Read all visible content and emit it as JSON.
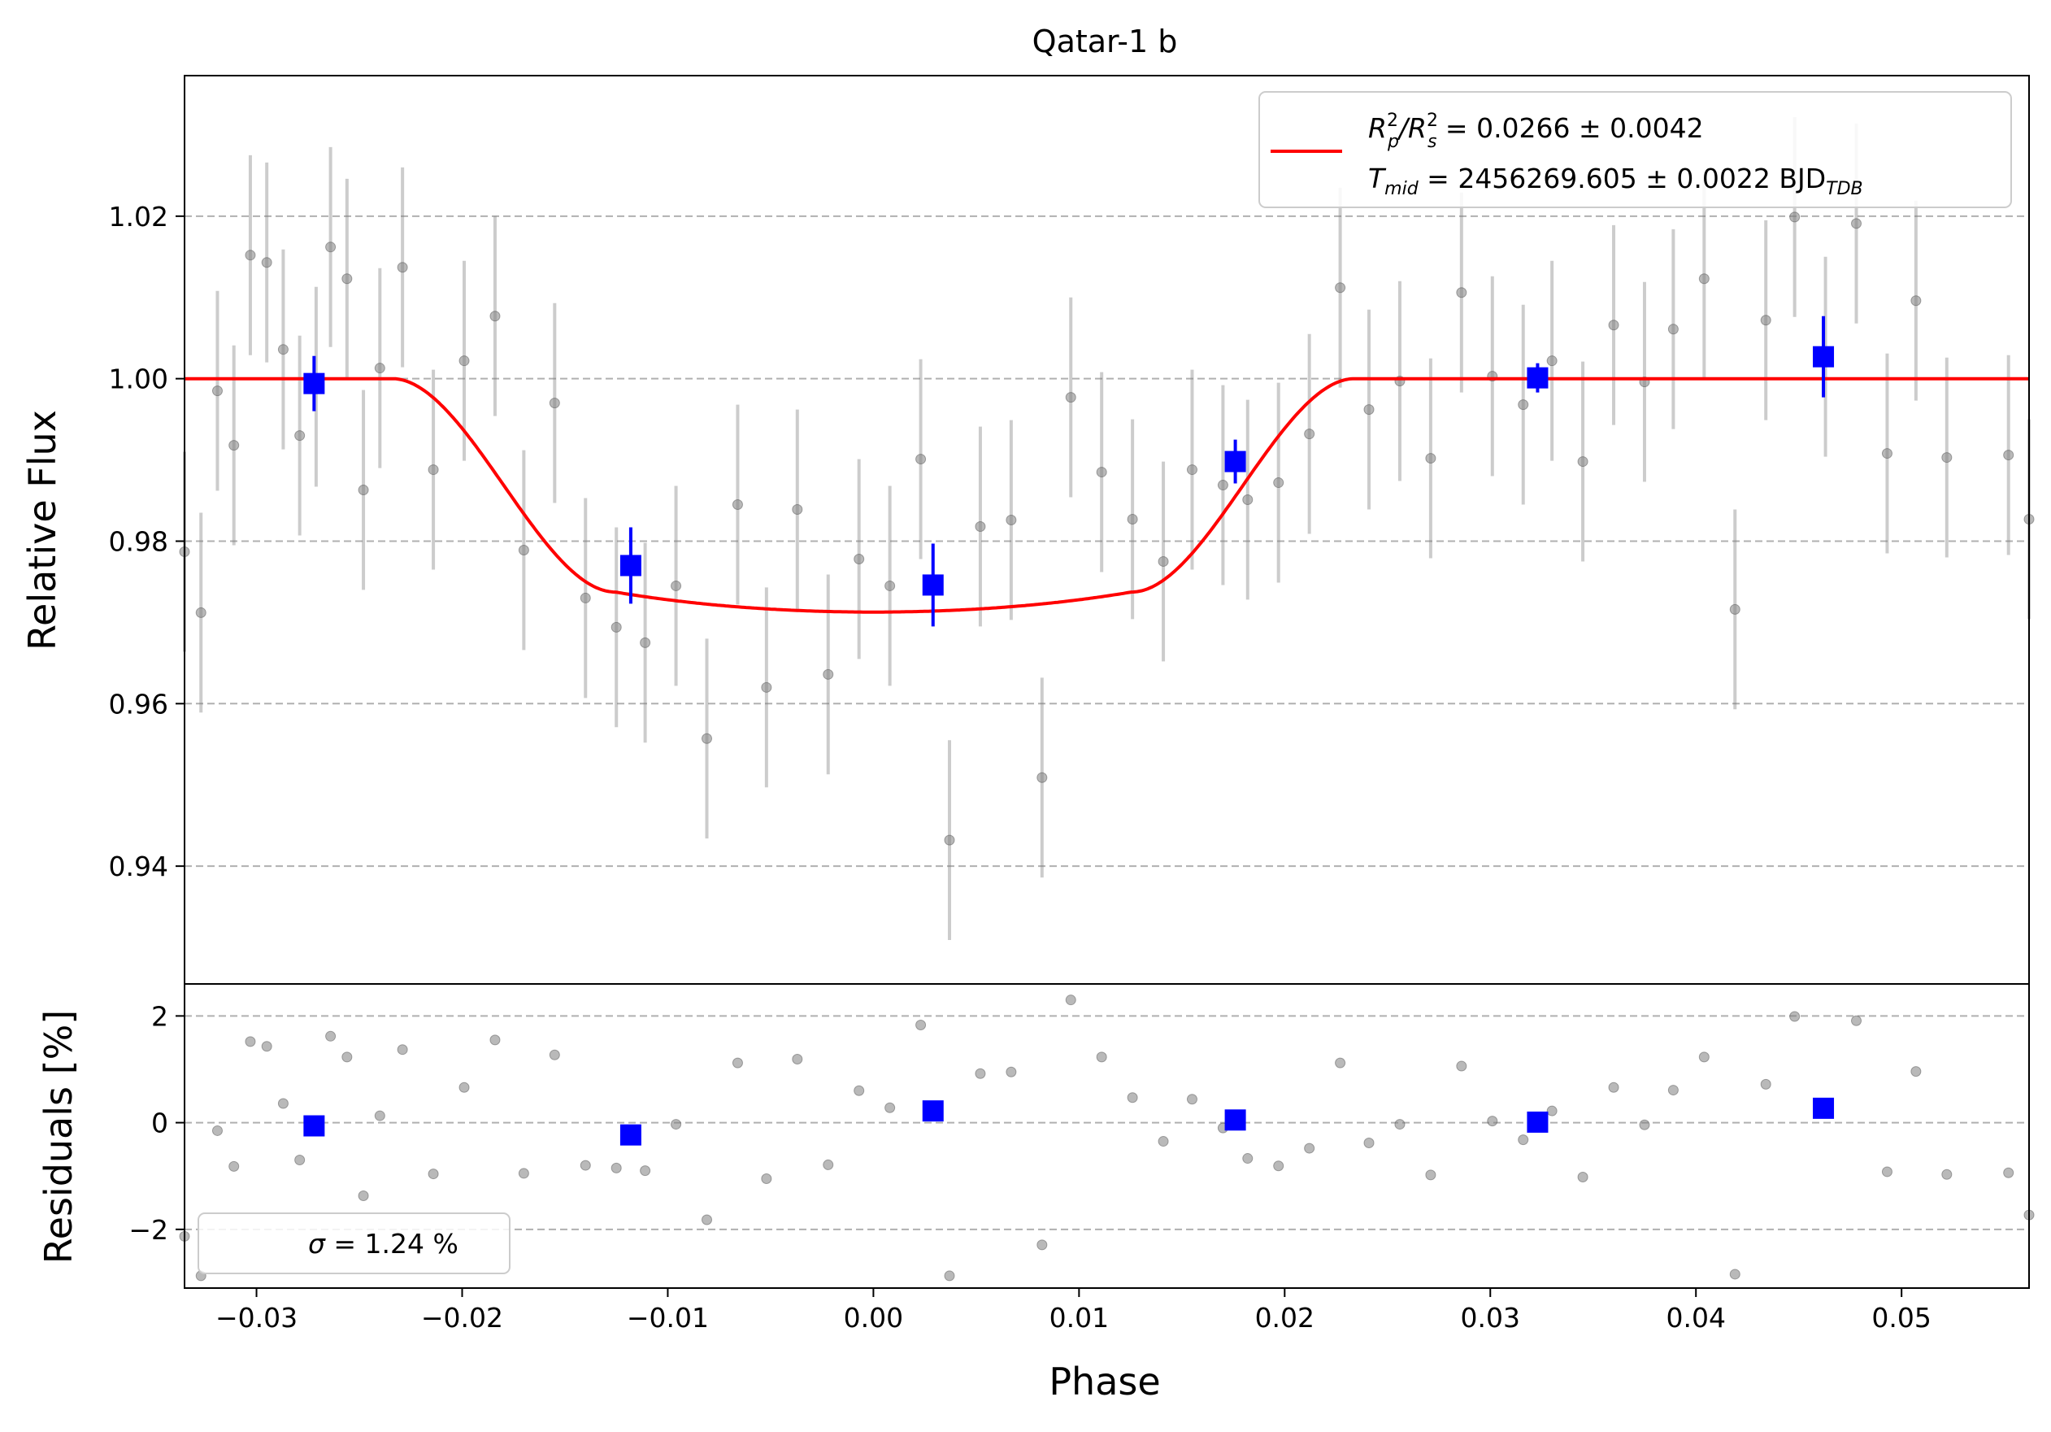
{
  "chart_data": [
    {
      "type": "scatter",
      "title": "Qatar-1 b",
      "xlabel": "",
      "ylabel": "Relative Flux",
      "xlim": [
        -0.0335,
        0.0562
      ],
      "ylim": [
        0.9255,
        1.0373
      ],
      "yticks": [
        0.94,
        0.96,
        0.98,
        1.0,
        1.02
      ],
      "ytick_labels": [
        "0.94",
        "0.96",
        "0.98",
        "1.00",
        "1.02"
      ],
      "grid": "horizontal dashed",
      "legend": {
        "placement": "top-right",
        "line1_main": "R",
        "line1_sup1": "2",
        "line1_sub1": "p",
        "line1_slash": "/R",
        "line1_sup2": "2",
        "line1_sub2": "s",
        "line1_rest": " = 0.0266 ± 0.0042",
        "line2_main": "T",
        "line2_sub": "mid",
        "line2_rest": " = 2456269.605 ± 0.0022 BJD",
        "line2_sub2": "TDB"
      },
      "colors": {
        "raw": "#808080",
        "binned": "#0000ff",
        "model": "#ff0000",
        "grid": "#b0b0b0"
      },
      "raw": {
        "x": [
          -0.0335,
          -0.0327,
          -0.0319,
          -0.0311,
          -0.0303,
          -0.0295,
          -0.0287,
          -0.0279,
          -0.0271,
          -0.0264,
          -0.0256,
          -0.0248,
          -0.024,
          -0.0229,
          -0.0214,
          -0.0199,
          -0.0184,
          -0.017,
          -0.0155,
          -0.014,
          -0.0125,
          -0.0111,
          -0.0096,
          -0.0081,
          -0.0066,
          -0.0052,
          -0.0037,
          -0.0022,
          -0.0007,
          0.0008,
          0.0023,
          0.0037,
          0.0052,
          0.0067,
          0.0082,
          0.0096,
          0.0111,
          0.0126,
          0.0141,
          0.0155,
          0.017,
          0.0182,
          0.0197,
          0.0212,
          0.0227,
          0.0241,
          0.0256,
          0.0271,
          0.0286,
          0.0301,
          0.0316,
          0.033,
          0.0345,
          0.036,
          0.0375,
          0.0389,
          0.0404,
          0.0419,
          0.0434,
          0.0448,
          0.0463,
          0.0478,
          0.0493,
          0.0507,
          0.0522,
          0.0552,
          0.0562
        ],
        "y": [
          0.9787,
          0.9712,
          0.9985,
          0.9918,
          1.0152,
          1.0143,
          1.0036,
          0.993,
          0.999,
          1.0162,
          1.0123,
          0.9863,
          1.0013,
          1.0137,
          0.9888,
          1.0022,
          1.0077,
          0.9789,
          0.997,
          0.973,
          0.9694,
          0.9675,
          0.9745,
          0.9557,
          0.9845,
          0.962,
          0.9839,
          0.9636,
          0.9778,
          0.9745,
          0.9901,
          0.9432,
          0.9818,
          0.9826,
          0.9509,
          0.9977,
          0.9885,
          0.9827,
          0.9775,
          0.9888,
          0.9869,
          0.9851,
          0.9872,
          0.9932,
          1.0112,
          0.9962,
          0.9997,
          0.9902,
          1.0106,
          1.0003,
          0.9968,
          1.0022,
          0.9898,
          1.0066,
          0.9996,
          1.0061,
          1.0123,
          0.9716,
          1.0072,
          1.0199,
          1.0027,
          1.0191,
          0.9908,
          1.0096,
          0.9903,
          0.9906,
          0.9827
        ],
        "yerr": 0.0123
      },
      "binned": {
        "x": [
          -0.0272,
          -0.0118,
          0.0029,
          0.0176,
          0.0323,
          0.0462
        ],
        "y": [
          0.9994,
          0.977,
          0.9746,
          0.9898,
          1.0001,
          1.0027
        ],
        "yerr": [
          0.0034,
          0.0047,
          0.0051,
          0.0027,
          0.0018,
          0.005
        ]
      },
      "model": {
        "rp2_rs2": 0.0266,
        "t14_phase": 0.0468,
        "t23_phase": 0.0251,
        "baseline": 1.0
      }
    },
    {
      "type": "scatter",
      "title": "",
      "xlabel": "Phase",
      "ylabel": "Residuals [%]",
      "xlim": [
        -0.0335,
        0.0562
      ],
      "ylim": [
        -3.1,
        2.6
      ],
      "yticks": [
        -2,
        0,
        2
      ],
      "ytick_labels": [
        "−2",
        "0",
        "2"
      ],
      "xticks": [
        -0.03,
        -0.02,
        -0.01,
        0.0,
        0.01,
        0.02,
        0.03,
        0.04,
        0.05
      ],
      "xtick_labels": [
        "−0.03",
        "−0.02",
        "−0.01",
        "0.00",
        "0.01",
        "0.02",
        "0.03",
        "0.04",
        "0.05"
      ],
      "grid": "horizontal dashed",
      "legend": {
        "placement": "bottom-left",
        "sigma_symbol": "σ",
        "sigma_rest": " = 1.24 %"
      },
      "raw": {
        "x": [
          -0.0335,
          -0.0327,
          -0.0319,
          -0.0311,
          -0.0303,
          -0.0295,
          -0.0287,
          -0.0279,
          -0.0271,
          -0.0264,
          -0.0256,
          -0.0248,
          -0.024,
          -0.0229,
          -0.0214,
          -0.0199,
          -0.0184,
          -0.017,
          -0.0155,
          -0.014,
          -0.0125,
          -0.0111,
          -0.0096,
          -0.0081,
          -0.0066,
          -0.0052,
          -0.0037,
          -0.0022,
          -0.0007,
          0.0008,
          0.0023,
          0.0037,
          0.0052,
          0.0067,
          0.0082,
          0.0096,
          0.0111,
          0.0126,
          0.0141,
          0.0155,
          0.017,
          0.0182,
          0.0197,
          0.0212,
          0.0227,
          0.0241,
          0.0256,
          0.0271,
          0.0286,
          0.0301,
          0.0316,
          0.033,
          0.0345,
          0.036,
          0.0375,
          0.0389,
          0.0404,
          0.0419,
          0.0434,
          0.0448,
          0.0463,
          0.0478,
          0.0493,
          0.0507,
          0.0522,
          0.0552,
          0.0562
        ],
        "y": [
          -2.13,
          -2.87,
          -0.15,
          -0.82,
          1.52,
          1.43,
          0.36,
          -0.7,
          -0.1,
          1.62,
          1.23,
          -1.37,
          0.13,
          1.37,
          -0.96,
          0.66,
          1.55,
          -0.95,
          1.27,
          -0.8,
          -0.85,
          -0.9,
          -0.03,
          -1.82,
          1.12,
          -1.05,
          1.19,
          -0.79,
          0.6,
          0.28,
          1.83,
          -2.87,
          0.92,
          0.95,
          -2.29,
          2.3,
          1.23,
          0.47,
          -0.35,
          0.44,
          -0.1,
          -0.67,
          -0.81,
          -0.48,
          1.12,
          -0.38,
          -0.03,
          -0.98,
          1.06,
          0.03,
          -0.32,
          0.22,
          -1.02,
          0.66,
          -0.04,
          0.61,
          1.23,
          -2.84,
          0.72,
          1.99,
          0.27,
          1.91,
          -0.92,
          0.96,
          -0.97,
          -0.94,
          -1.73
        ]
      },
      "binned": {
        "x": [
          -0.0272,
          -0.0118,
          0.0029,
          0.0176,
          0.0323,
          0.0462
        ],
        "y": [
          -0.06,
          -0.23,
          0.22,
          0.05,
          0.01,
          0.27
        ]
      }
    }
  ]
}
